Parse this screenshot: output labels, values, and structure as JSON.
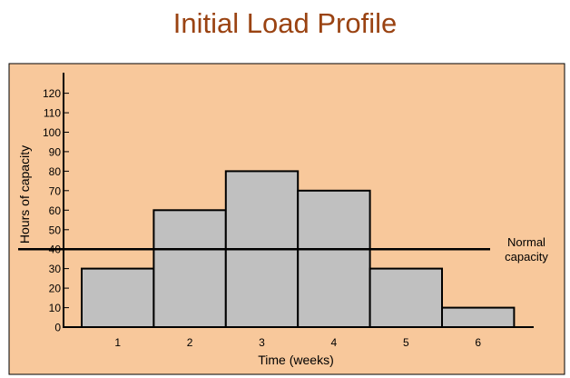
{
  "chart_data": {
    "type": "bar",
    "title": "Initial Load Profile",
    "xlabel": "Time (weeks)",
    "ylabel": "Hours of capacity",
    "categories": [
      "1",
      "2",
      "3",
      "4",
      "5",
      "6"
    ],
    "values": [
      30,
      60,
      80,
      70,
      30,
      10
    ],
    "ylim": [
      0,
      120
    ],
    "yticks": [
      "0",
      "10",
      "20",
      "30",
      "40",
      "50",
      "60",
      "70",
      "80",
      "90",
      "100",
      "110",
      "120"
    ],
    "annotation": {
      "value": 40,
      "label_line1": "Normal",
      "label_line2": "capacity"
    },
    "grid": false,
    "legend": "none"
  },
  "colors": {
    "background": "#f8c89b",
    "bar_fill": "#c0c0c0",
    "bar_stroke": "#000000",
    "title": "#9a4312"
  }
}
